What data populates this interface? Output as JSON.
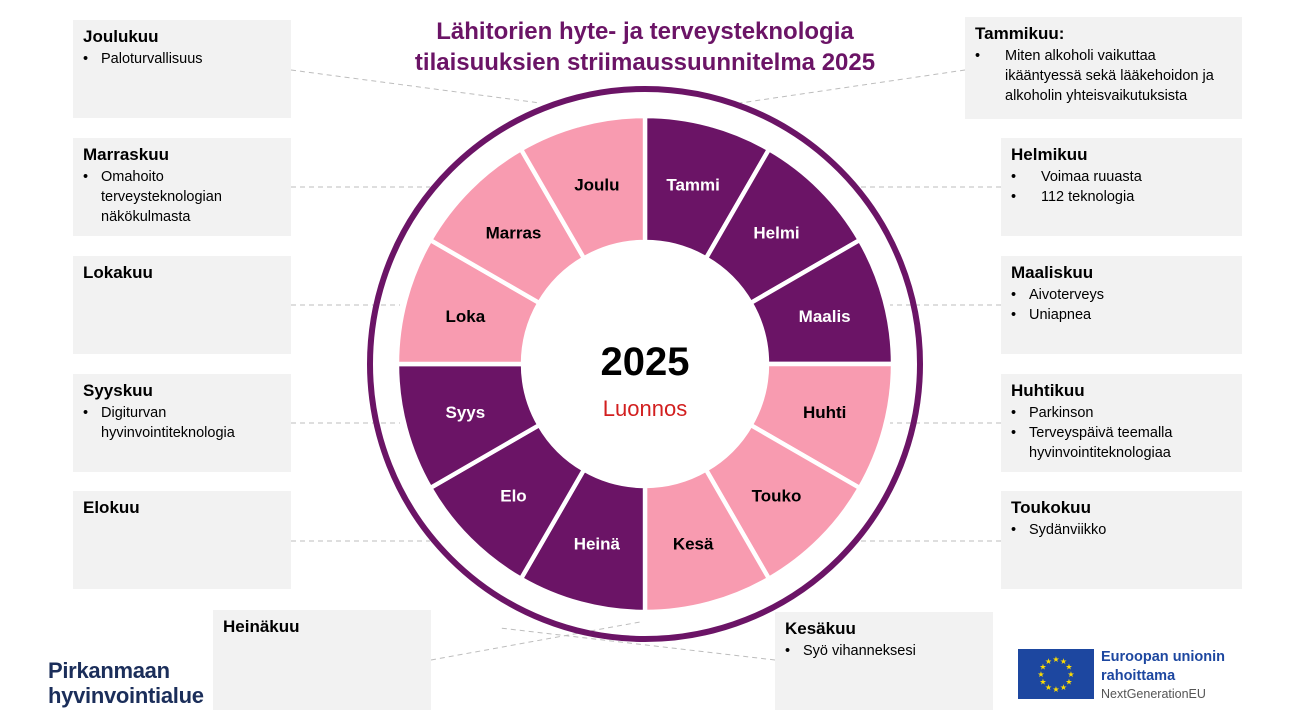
{
  "title": {
    "line1": "Lähitorien hyte- ja terveysteknologia",
    "line2": "tilaisuuksien striimaussuunnitelma 2025"
  },
  "center": {
    "year": "2025",
    "note": "Luonnos"
  },
  "colors": {
    "dark": "#6b1466",
    "light": "#f89bb0",
    "title": "#6b1466",
    "draft": "#d21f1f"
  },
  "wheel": [
    {
      "label": "Tammi",
      "tone": "dark"
    },
    {
      "label": "Helmi",
      "tone": "dark"
    },
    {
      "label": "Maalis",
      "tone": "dark"
    },
    {
      "label": "Huhti",
      "tone": "light"
    },
    {
      "label": "Touko",
      "tone": "light"
    },
    {
      "label": "Kesä",
      "tone": "light"
    },
    {
      "label": "Heinä",
      "tone": "dark"
    },
    {
      "label": "Elo",
      "tone": "dark"
    },
    {
      "label": "Syys",
      "tone": "dark"
    },
    {
      "label": "Loka",
      "tone": "light"
    },
    {
      "label": "Marras",
      "tone": "light"
    },
    {
      "label": "Joulu",
      "tone": "light"
    }
  ],
  "months": {
    "joulukuu": {
      "title": "Joulukuu",
      "items": [
        "Paloturvallisuus"
      ]
    },
    "marraskuu": {
      "title": "Marraskuu",
      "items": [
        "Omahoito terveysteknologian näkökulmasta"
      ]
    },
    "lokakuu": {
      "title": "Lokakuu",
      "items": []
    },
    "syyskuu": {
      "title": "Syyskuu",
      "items": [
        "Digiturvan hyvinvointiteknologia"
      ]
    },
    "elokuu": {
      "title": "Elokuu",
      "items": []
    },
    "heinakuu": {
      "title": "Heinäkuu",
      "items": []
    },
    "tammikuu": {
      "title": "Tammikuu:",
      "items": [
        "Miten alkoholi vaikuttaa ikääntyessä sekä lääkehoidon ja alkoholin yhteisvaikutuksista"
      ]
    },
    "helmikuu": {
      "title": "Helmikuu",
      "items": [
        "Voimaa ruuasta",
        "112 teknologia"
      ]
    },
    "maaliskuu": {
      "title": "Maaliskuu",
      "items": [
        "Aivoterveys",
        "Uniapnea"
      ]
    },
    "huhtikuu": {
      "title": "Huhtikuu",
      "items": [
        "Parkinson",
        "Terveyspäivä teemalla hyvinvointiteknologiaa"
      ]
    },
    "toukokuu": {
      "title": "Toukokuu",
      "items": [
        "Sydänviikko"
      ]
    },
    "kesakuu": {
      "title": "Kesäkuu",
      "items": [
        "Syö vihanneksesi"
      ]
    }
  },
  "logo": {
    "line1": "Pirkanmaan",
    "line2": "hyvinvointialue"
  },
  "eu": {
    "line1": "Euroopan unionin",
    "line2": "rahoittama",
    "line3": "NextGenerationEU"
  }
}
